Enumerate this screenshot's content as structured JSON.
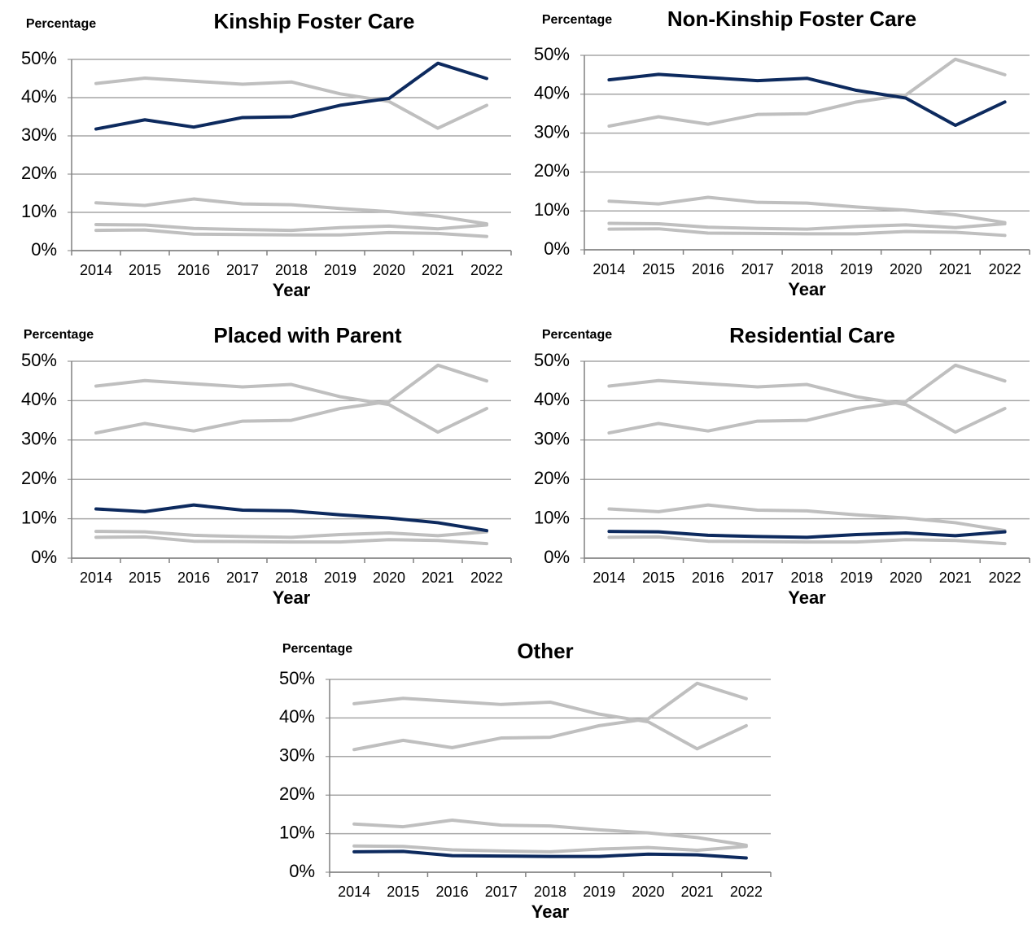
{
  "chart_data": [
    {
      "type": "line",
      "title": "Kinship Foster Care",
      "y_label": "Percentage",
      "x_label": "Year",
      "categories": [
        "2014",
        "2015",
        "2016",
        "2017",
        "2018",
        "2019",
        "2020",
        "2021",
        "2022"
      ],
      "ylim": [
        0,
        50
      ],
      "yticks": [
        {
          "value": 0,
          "label": "0%"
        },
        {
          "value": 10,
          "label": "10%"
        },
        {
          "value": 20,
          "label": "20%"
        },
        {
          "value": 30,
          "label": "30%"
        },
        {
          "value": 40,
          "label": "40%"
        },
        {
          "value": 50,
          "label": "50%"
        }
      ],
      "grid": true,
      "series": [
        {
          "color": "#bfbfbf",
          "values": [
            43.7,
            45.1,
            44.3,
            43.5,
            44.1,
            41,
            39,
            32,
            38
          ]
        },
        {
          "color": "#bfbfbf",
          "values": [
            12.5,
            11.8,
            13.5,
            12.2,
            12,
            11,
            10.2,
            9,
            7
          ]
        },
        {
          "color": "#bfbfbf",
          "values": [
            6.8,
            6.7,
            5.8,
            5.5,
            5.3,
            6,
            6.4,
            5.7,
            6.7
          ]
        },
        {
          "color": "#bfbfbf",
          "values": [
            5.3,
            5.4,
            4.3,
            4.2,
            4.1,
            4.1,
            4.7,
            4.5,
            3.7
          ]
        },
        {
          "color": "#0d2a5e",
          "values": [
            31.8,
            34.2,
            32.3,
            34.8,
            35,
            38,
            39.8,
            49,
            45
          ]
        }
      ]
    },
    {
      "type": "line",
      "title": "Non-Kinship Foster Care",
      "y_label": "Percentage",
      "x_label": "Year",
      "categories": [
        "2014",
        "2015",
        "2016",
        "2017",
        "2018",
        "2019",
        "2020",
        "2021",
        "2022"
      ],
      "ylim": [
        0,
        50
      ],
      "yticks": [
        {
          "value": 0,
          "label": "0%"
        },
        {
          "value": 10,
          "label": "10%"
        },
        {
          "value": 20,
          "label": "20%"
        },
        {
          "value": 30,
          "label": "30%"
        },
        {
          "value": 40,
          "label": "40%"
        },
        {
          "value": 50,
          "label": "50%"
        }
      ],
      "grid": true,
      "series": [
        {
          "color": "#bfbfbf",
          "values": [
            31.8,
            34.2,
            32.3,
            34.8,
            35,
            38,
            39.8,
            49,
            45
          ]
        },
        {
          "color": "#bfbfbf",
          "values": [
            12.5,
            11.8,
            13.5,
            12.2,
            12,
            11,
            10.2,
            9,
            7
          ]
        },
        {
          "color": "#bfbfbf",
          "values": [
            6.8,
            6.7,
            5.8,
            5.5,
            5.3,
            6,
            6.4,
            5.7,
            6.7
          ]
        },
        {
          "color": "#bfbfbf",
          "values": [
            5.3,
            5.4,
            4.3,
            4.2,
            4.1,
            4.1,
            4.7,
            4.5,
            3.7
          ]
        },
        {
          "color": "#0d2a5e",
          "values": [
            43.7,
            45.1,
            44.3,
            43.5,
            44.1,
            41,
            39,
            32,
            38
          ]
        }
      ]
    },
    {
      "type": "line",
      "title": "Placed with Parent",
      "y_label": "Percentage",
      "x_label": "Year",
      "categories": [
        "2014",
        "2015",
        "2016",
        "2017",
        "2018",
        "2019",
        "2020",
        "2021",
        "2022"
      ],
      "ylim": [
        0,
        50
      ],
      "yticks": [
        {
          "value": 0,
          "label": "0%"
        },
        {
          "value": 10,
          "label": "10%"
        },
        {
          "value": 20,
          "label": "20%"
        },
        {
          "value": 30,
          "label": "30%"
        },
        {
          "value": 40,
          "label": "40%"
        },
        {
          "value": 50,
          "label": "50%"
        }
      ],
      "grid": true,
      "series": [
        {
          "color": "#bfbfbf",
          "values": [
            31.8,
            34.2,
            32.3,
            34.8,
            35,
            38,
            39.8,
            49,
            45
          ]
        },
        {
          "color": "#bfbfbf",
          "values": [
            43.7,
            45.1,
            44.3,
            43.5,
            44.1,
            41,
            39,
            32,
            38
          ]
        },
        {
          "color": "#bfbfbf",
          "values": [
            6.8,
            6.7,
            5.8,
            5.5,
            5.3,
            6,
            6.4,
            5.7,
            6.7
          ]
        },
        {
          "color": "#bfbfbf",
          "values": [
            5.3,
            5.4,
            4.3,
            4.2,
            4.1,
            4.1,
            4.7,
            4.5,
            3.7
          ]
        },
        {
          "color": "#0d2a5e",
          "values": [
            12.5,
            11.8,
            13.5,
            12.2,
            12,
            11,
            10.2,
            9,
            7
          ]
        }
      ]
    },
    {
      "type": "line",
      "title": "Residential Care",
      "y_label": "Percentage",
      "x_label": "Year",
      "categories": [
        "2014",
        "2015",
        "2016",
        "2017",
        "2018",
        "2019",
        "2020",
        "2021",
        "2022"
      ],
      "ylim": [
        0,
        50
      ],
      "yticks": [
        {
          "value": 0,
          "label": "0%"
        },
        {
          "value": 10,
          "label": "10%"
        },
        {
          "value": 20,
          "label": "20%"
        },
        {
          "value": 30,
          "label": "30%"
        },
        {
          "value": 40,
          "label": "40%"
        },
        {
          "value": 50,
          "label": "50%"
        }
      ],
      "grid": true,
      "series": [
        {
          "color": "#bfbfbf",
          "values": [
            31.8,
            34.2,
            32.3,
            34.8,
            35,
            38,
            39.8,
            49,
            45
          ]
        },
        {
          "color": "#bfbfbf",
          "values": [
            43.7,
            45.1,
            44.3,
            43.5,
            44.1,
            41,
            39,
            32,
            38
          ]
        },
        {
          "color": "#bfbfbf",
          "values": [
            12.5,
            11.8,
            13.5,
            12.2,
            12,
            11,
            10.2,
            9,
            7
          ]
        },
        {
          "color": "#bfbfbf",
          "values": [
            5.3,
            5.4,
            4.3,
            4.2,
            4.1,
            4.1,
            4.7,
            4.5,
            3.7
          ]
        },
        {
          "color": "#0d2a5e",
          "values": [
            6.8,
            6.7,
            5.8,
            5.5,
            5.3,
            6,
            6.4,
            5.7,
            6.7
          ]
        }
      ]
    },
    {
      "type": "line",
      "title": "Other",
      "y_label": "Percentage",
      "x_label": "Year",
      "categories": [
        "2014",
        "2015",
        "2016",
        "2017",
        "2018",
        "2019",
        "2020",
        "2021",
        "2022"
      ],
      "ylim": [
        0,
        50
      ],
      "yticks": [
        {
          "value": 0,
          "label": "0%"
        },
        {
          "value": 10,
          "label": "10%"
        },
        {
          "value": 20,
          "label": "20%"
        },
        {
          "value": 30,
          "label": "30%"
        },
        {
          "value": 40,
          "label": "40%"
        },
        {
          "value": 50,
          "label": "50%"
        }
      ],
      "grid": true,
      "series": [
        {
          "color": "#bfbfbf",
          "values": [
            31.8,
            34.2,
            32.3,
            34.8,
            35,
            38,
            39.8,
            49,
            45
          ]
        },
        {
          "color": "#bfbfbf",
          "values": [
            43.7,
            45.1,
            44.3,
            43.5,
            44.1,
            41,
            39,
            32,
            38
          ]
        },
        {
          "color": "#bfbfbf",
          "values": [
            12.5,
            11.8,
            13.5,
            12.2,
            12,
            11,
            10.2,
            9,
            7
          ]
        },
        {
          "color": "#bfbfbf",
          "values": [
            6.8,
            6.7,
            5.8,
            5.5,
            5.3,
            6,
            6.4,
            5.7,
            6.7
          ]
        },
        {
          "color": "#0d2a5e",
          "values": [
            5.3,
            5.4,
            4.3,
            4.2,
            4.1,
            4.1,
            4.7,
            4.5,
            3.7
          ]
        }
      ]
    }
  ]
}
